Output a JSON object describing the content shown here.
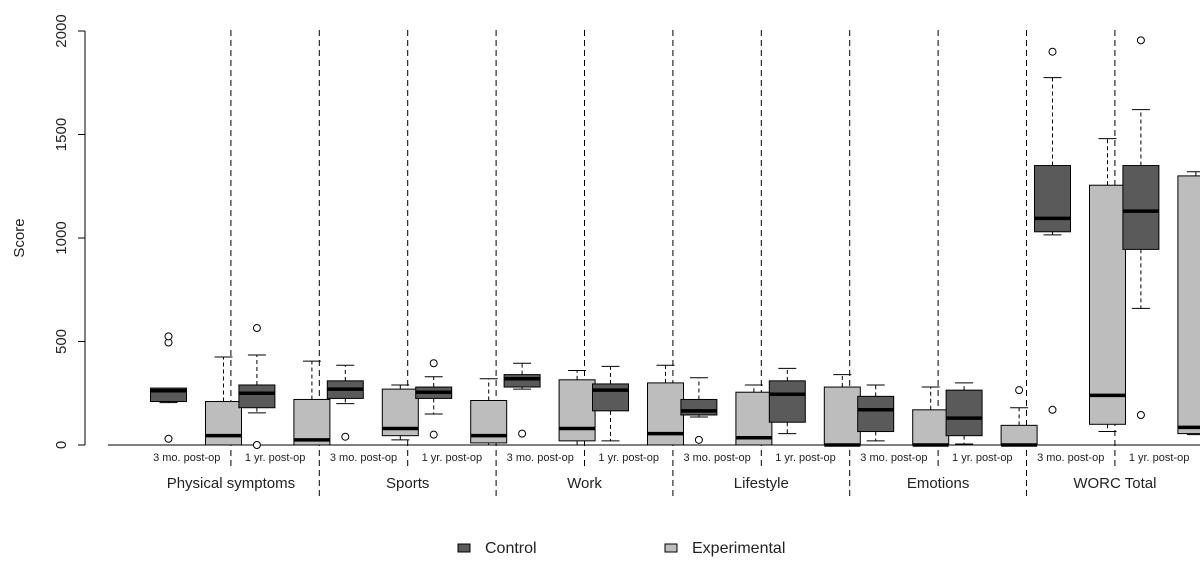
{
  "chart_data": {
    "type": "boxplot",
    "ylabel": "Score",
    "ylim": [
      0,
      2000
    ],
    "yticks": [
      0,
      500,
      1000,
      1500,
      2000
    ],
    "groups": [
      "Physical symptoms",
      "Sports",
      "Work",
      "Lifestyle",
      "Emotions",
      "WORC Total"
    ],
    "timepoints": [
      "3 mo. post-op",
      "1 yr. post-op"
    ],
    "series": [
      {
        "name": "Control",
        "color": "#5a5a5a"
      },
      {
        "name": "Experimental",
        "color": "#bdbdbd"
      }
    ],
    "boxes": [
      {
        "group": "Physical symptoms",
        "time": "3 mo. post-op",
        "series": "Control",
        "low": 205,
        "q1": 210,
        "median": 262,
        "q3": 275,
        "high": 275,
        "outliers": [
          30,
          495,
          525
        ]
      },
      {
        "group": "Physical symptoms",
        "time": "3 mo. post-op",
        "series": "Experimental",
        "low": 0,
        "q1": 0,
        "median": 45,
        "q3": 210,
        "high": 425,
        "outliers": []
      },
      {
        "group": "Physical symptoms",
        "time": "1 yr. post-op",
        "series": "Control",
        "low": 155,
        "q1": 180,
        "median": 250,
        "q3": 290,
        "high": 435,
        "outliers": [
          0,
          565
        ]
      },
      {
        "group": "Physical symptoms",
        "time": "1 yr. post-op",
        "series": "Experimental",
        "low": 0,
        "q1": 0,
        "median": 25,
        "q3": 220,
        "high": 405,
        "outliers": []
      },
      {
        "group": "Sports",
        "time": "3 mo. post-op",
        "series": "Control",
        "low": 200,
        "q1": 225,
        "median": 270,
        "q3": 310,
        "high": 385,
        "outliers": [
          40
        ]
      },
      {
        "group": "Sports",
        "time": "3 mo. post-op",
        "series": "Experimental",
        "low": 25,
        "q1": 45,
        "median": 80,
        "q3": 270,
        "high": 290,
        "outliers": []
      },
      {
        "group": "Sports",
        "time": "1 yr. post-op",
        "series": "Control",
        "low": 150,
        "q1": 225,
        "median": 255,
        "q3": 280,
        "high": 330,
        "outliers": [
          50,
          395
        ]
      },
      {
        "group": "Sports",
        "time": "1 yr. post-op",
        "series": "Experimental",
        "low": 0,
        "q1": 10,
        "median": 45,
        "q3": 215,
        "high": 320,
        "outliers": []
      },
      {
        "group": "Work",
        "time": "3 mo. post-op",
        "series": "Control",
        "low": 270,
        "q1": 280,
        "median": 320,
        "q3": 340,
        "high": 395,
        "outliers": [
          55
        ]
      },
      {
        "group": "Work",
        "time": "3 mo. post-op",
        "series": "Experimental",
        "low": 0,
        "q1": 20,
        "median": 80,
        "q3": 315,
        "high": 360,
        "outliers": []
      },
      {
        "group": "Work",
        "time": "1 yr. post-op",
        "series": "Control",
        "low": 20,
        "q1": 165,
        "median": 265,
        "q3": 295,
        "high": 380,
        "outliers": []
      },
      {
        "group": "Work",
        "time": "1 yr. post-op",
        "series": "Experimental",
        "low": 0,
        "q1": 0,
        "median": 55,
        "q3": 300,
        "high": 385,
        "outliers": []
      },
      {
        "group": "Lifestyle",
        "time": "3 mo. post-op",
        "series": "Control",
        "low": 135,
        "q1": 145,
        "median": 165,
        "q3": 220,
        "high": 325,
        "outliers": [
          25
        ]
      },
      {
        "group": "Lifestyle",
        "time": "3 mo. post-op",
        "series": "Experimental",
        "low": 0,
        "q1": 0,
        "median": 35,
        "q3": 255,
        "high": 290,
        "outliers": []
      },
      {
        "group": "Lifestyle",
        "time": "1 yr. post-op",
        "series": "Control",
        "low": 55,
        "q1": 110,
        "median": 245,
        "q3": 310,
        "high": 370,
        "outliers": []
      },
      {
        "group": "Lifestyle",
        "time": "1 yr. post-op",
        "series": "Experimental",
        "low": 0,
        "q1": 0,
        "median": 0,
        "q3": 280,
        "high": 340,
        "outliers": []
      },
      {
        "group": "Emotions",
        "time": "3 mo. post-op",
        "series": "Control",
        "low": 20,
        "q1": 65,
        "median": 170,
        "q3": 235,
        "high": 290,
        "outliers": []
      },
      {
        "group": "Emotions",
        "time": "3 mo. post-op",
        "series": "Experimental",
        "low": 0,
        "q1": 0,
        "median": 0,
        "q3": 170,
        "high": 280,
        "outliers": []
      },
      {
        "group": "Emotions",
        "time": "1 yr. post-op",
        "series": "Control",
        "low": 5,
        "q1": 45,
        "median": 130,
        "q3": 265,
        "high": 300,
        "outliers": []
      },
      {
        "group": "Emotions",
        "time": "1 yr. post-op",
        "series": "Experimental",
        "low": 0,
        "q1": 0,
        "median": 0,
        "q3": 95,
        "high": 180,
        "outliers": [
          265
        ]
      },
      {
        "group": "WORC Total",
        "time": "3 mo. post-op",
        "series": "Control",
        "low": 1015,
        "q1": 1030,
        "median": 1095,
        "q3": 1350,
        "high": 1775,
        "outliers": [
          170,
          1900
        ]
      },
      {
        "group": "WORC Total",
        "time": "3 mo. post-op",
        "series": "Experimental",
        "low": 65,
        "q1": 100,
        "median": 240,
        "q3": 1255,
        "high": 1480,
        "outliers": []
      },
      {
        "group": "WORC Total",
        "time": "1 yr. post-op",
        "series": "Control",
        "low": 660,
        "q1": 945,
        "median": 1130,
        "q3": 1350,
        "high": 1620,
        "outliers": [
          145,
          1955
        ]
      },
      {
        "group": "WORC Total",
        "time": "1 yr. post-op",
        "series": "Experimental",
        "low": 50,
        "q1": 55,
        "median": 85,
        "q3": 1300,
        "high": 1320,
        "outliers": []
      }
    ]
  }
}
